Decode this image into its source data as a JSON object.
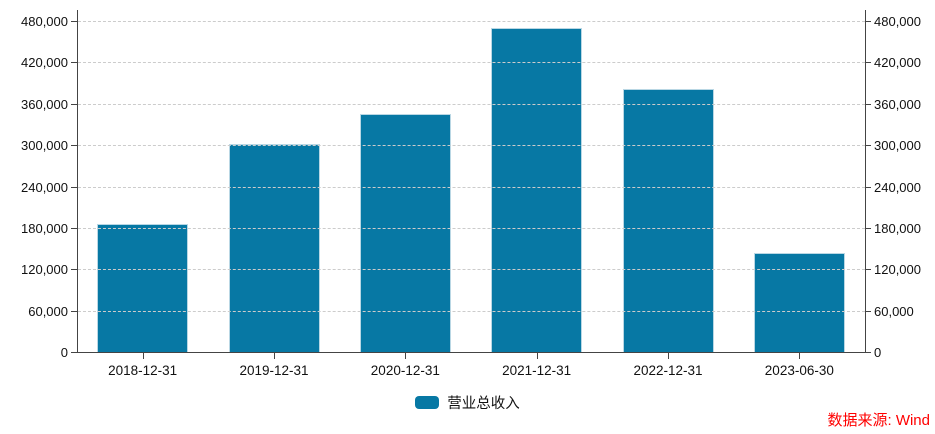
{
  "chart_data": {
    "type": "bar",
    "title": "",
    "categories": [
      "2018-12-31",
      "2019-12-31",
      "2020-12-31",
      "2021-12-31",
      "2022-12-31",
      "2023-06-30"
    ],
    "series": [
      {
        "name": "营业总收入",
        "values": [
          185000,
          302000,
          345000,
          470000,
          382000,
          143000
        ]
      }
    ],
    "ylim": [
      0,
      480000
    ],
    "ytick_step": 60000,
    "y_tick_labels": [
      "0",
      "60,000",
      "120,000",
      "180,000",
      "240,000",
      "300,000",
      "360,000",
      "420,000",
      "480,000"
    ],
    "y_axis_mirrored_right": true,
    "grid": "horizontal-dashed",
    "legend_position": "bottom-center",
    "bar_color": "#0778a4"
  },
  "legend": {
    "label": "营业总收入",
    "swatch_color": "#0778a4"
  },
  "footer": {
    "source_label": "数据来源: Wind",
    "color": "#ff0000"
  }
}
